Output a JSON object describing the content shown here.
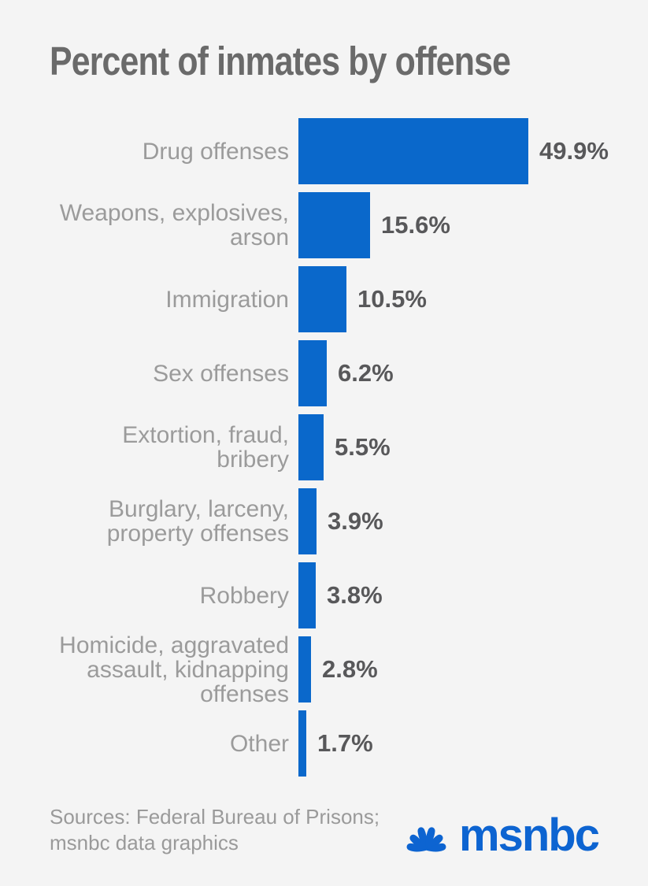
{
  "title": "Percent of inmates by offense",
  "chart_data": {
    "type": "bar",
    "orientation": "horizontal",
    "title": "Percent of inmates by offense",
    "categories": [
      "Drug offenses",
      "Weapons, explosives,\narson",
      "Immigration",
      "Sex offenses",
      "Extortion, fraud,\nbribery",
      "Burglary, larceny,\nproperty offenses",
      "Robbery",
      "Homicide, aggravated\nassault, kidnapping\noffenses",
      "Other"
    ],
    "values": [
      49.9,
      15.6,
      10.5,
      6.2,
      5.5,
      3.9,
      3.8,
      2.8,
      1.7
    ],
    "value_labels": [
      "49.9%",
      "15.6%",
      "10.5%",
      "6.2%",
      "5.5%",
      "3.9%",
      "3.8%",
      "2.8%",
      "1.7%"
    ],
    "xlabel": "",
    "ylabel": "",
    "xlim": [
      0,
      49.9
    ],
    "grid": false,
    "axes_visible": false,
    "legend": "none",
    "bar_color": "#0a68cb",
    "category_label_color": "#9b9b9b",
    "value_label_color": "#58585a"
  },
  "footer": {
    "sources_line1": "Sources: Federal Bureau of Prisons;",
    "sources_line2": "msnbc data graphics",
    "logo_text": "msnbc"
  },
  "colors": {
    "background": "#f4f4f4",
    "title_text": "#6a6a6a",
    "brand_blue": "#0d64d1"
  },
  "icons": {
    "peacock": "nbc-peacock-icon"
  }
}
